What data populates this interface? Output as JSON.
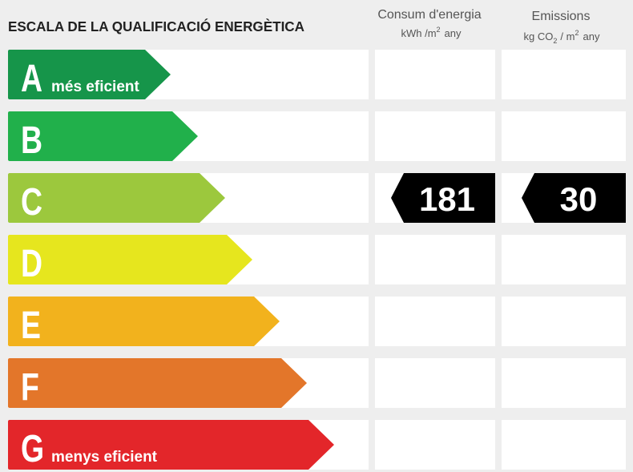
{
  "header": {
    "title": "ESCALA DE LA QUALIFICACIÓ ENERGÈTICA",
    "energy": {
      "label": "Consum d'energia",
      "unit": "kWh /m",
      "unit_sup": "2",
      "unit_end": "any"
    },
    "emissions": {
      "label": "Emissions",
      "unit": "kg CO",
      "unit_sub": "2",
      "unit_mid": "/ m",
      "unit_sup": "2",
      "unit_end": "any"
    }
  },
  "rows": [
    {
      "letter": "A",
      "label": "més eficient",
      "color": "#16954a"
    },
    {
      "letter": "B",
      "color": "#21b04b"
    },
    {
      "letter": "C",
      "color": "#9cc83d",
      "energy": 181,
      "emissions": 30
    },
    {
      "letter": "D",
      "color": "#e6e61e"
    },
    {
      "letter": "E",
      "color": "#f2b21d"
    },
    {
      "letter": "F",
      "color": "#e3762a"
    },
    {
      "letter": "G",
      "label": "menys eficient",
      "color": "#e3262a"
    }
  ]
}
